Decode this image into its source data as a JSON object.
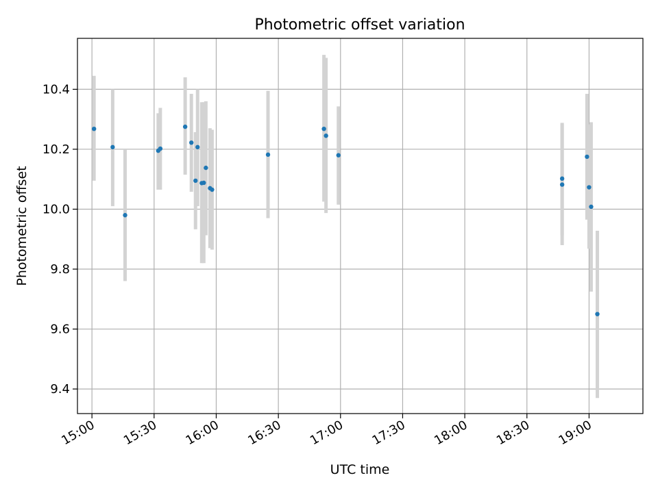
{
  "chart_data": {
    "type": "scatter",
    "title": "Photometric offset variation",
    "xlabel": "UTC time",
    "ylabel": "Photometric offset",
    "x_tick_labels": [
      "15:00",
      "15:30",
      "16:00",
      "16:30",
      "17:00",
      "17:30",
      "18:00",
      "18:30",
      "19:00"
    ],
    "y_tick_labels": [
      "9.4",
      "9.6",
      "9.8",
      "10.0",
      "10.2",
      "10.4"
    ],
    "xlim": [
      "14:53",
      "19:26"
    ],
    "ylim": [
      9.318,
      10.57
    ],
    "grid": true,
    "colors": {
      "points": "#1f77b4",
      "error_bars": "#d3d3d3",
      "grid": "#b0b0b0"
    },
    "series": [
      {
        "points": [
          {
            "x": "15:01",
            "y": 10.268,
            "yerr_low": 10.095,
            "yerr_high": 10.445
          },
          {
            "x": "15:10",
            "y": 10.207,
            "yerr_low": 10.01,
            "yerr_high": 10.4
          },
          {
            "x": "15:16",
            "y": 9.98,
            "yerr_low": 9.76,
            "yerr_high": 10.2
          },
          {
            "x": "15:32",
            "y": 10.195,
            "yerr_low": 10.065,
            "yerr_high": 10.32
          },
          {
            "x": "15:33",
            "y": 10.202,
            "yerr_low": 10.065,
            "yerr_high": 10.338
          },
          {
            "x": "15:45",
            "y": 10.275,
            "yerr_low": 10.115,
            "yerr_high": 10.44
          },
          {
            "x": "15:48",
            "y": 10.222,
            "yerr_low": 10.058,
            "yerr_high": 10.385
          },
          {
            "x": "15:50",
            "y": 10.095,
            "yerr_low": 9.933,
            "yerr_high": 10.257
          },
          {
            "x": "15:51",
            "y": 10.207,
            "yerr_low": 10.01,
            "yerr_high": 10.4
          },
          {
            "x": "15:53",
            "y": 10.087,
            "yerr_low": 9.82,
            "yerr_high": 10.357
          },
          {
            "x": "15:54",
            "y": 10.088,
            "yerr_low": 9.82,
            "yerr_high": 10.357
          },
          {
            "x": "15:55",
            "y": 10.138,
            "yerr_low": 9.913,
            "yerr_high": 10.36
          },
          {
            "x": "15:57",
            "y": 10.07,
            "yerr_low": 9.87,
            "yerr_high": 10.27
          },
          {
            "x": "15:58",
            "y": 10.065,
            "yerr_low": 9.865,
            "yerr_high": 10.265
          },
          {
            "x": "16:25",
            "y": 10.182,
            "yerr_low": 9.97,
            "yerr_high": 10.395
          },
          {
            "x": "16:52",
            "y": 10.268,
            "yerr_low": 10.025,
            "yerr_high": 10.515
          },
          {
            "x": "16:53",
            "y": 10.245,
            "yerr_low": 9.987,
            "yerr_high": 10.505
          },
          {
            "x": "16:59",
            "y": 10.18,
            "yerr_low": 10.015,
            "yerr_high": 10.343
          },
          {
            "x": "18:47",
            "y": 10.102,
            "yerr_low": 9.912,
            "yerr_high": 10.288
          },
          {
            "x": "18:47",
            "y": 10.082,
            "yerr_low": 9.88,
            "yerr_high": 10.285
          },
          {
            "x": "18:59",
            "y": 10.175,
            "yerr_low": 9.965,
            "yerr_high": 10.385
          },
          {
            "x": "19:00",
            "y": 10.073,
            "yerr_low": 9.868,
            "yerr_high": 10.283
          },
          {
            "x": "19:01",
            "y": 10.008,
            "yerr_low": 9.725,
            "yerr_high": 10.29
          },
          {
            "x": "19:04",
            "y": 9.65,
            "yerr_low": 9.37,
            "yerr_high": 9.928
          }
        ]
      }
    ]
  }
}
